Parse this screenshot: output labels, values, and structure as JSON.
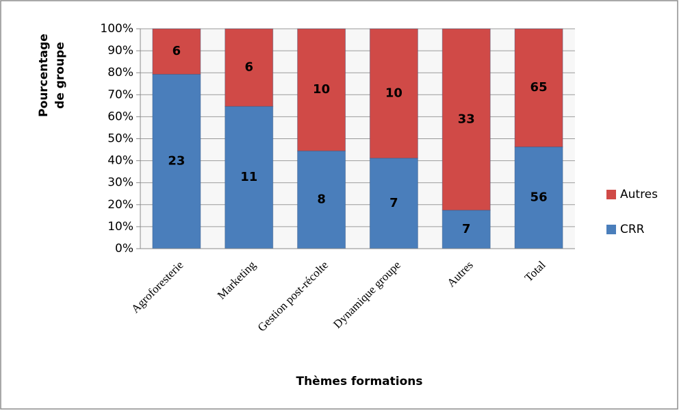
{
  "chart_data": {
    "type": "bar",
    "stack": "percent",
    "xlabel": "Thèmes formations",
    "ylabel": [
      "Pourcentage",
      "de groupe"
    ],
    "categories": [
      "Agroforesterie",
      "Marketing",
      "Gestion post-récolte",
      "Dynamique groupe",
      "Autres",
      "Total"
    ],
    "series": [
      {
        "name": "CRR",
        "color": "#4a7ebb",
        "values": [
          23,
          11,
          8,
          7,
          7,
          56
        ]
      },
      {
        "name": "Autres",
        "color": "#d04a47",
        "values": [
          6,
          6,
          10,
          10,
          33,
          65
        ]
      }
    ],
    "ylim": [
      0,
      100
    ],
    "yticks": [
      {
        "value": 0,
        "label": "0%"
      },
      {
        "value": 10,
        "label": "10%"
      },
      {
        "value": 20,
        "label": "20%"
      },
      {
        "value": 30,
        "label": "30%"
      },
      {
        "value": 40,
        "label": "40%"
      },
      {
        "value": 50,
        "label": "50%"
      },
      {
        "value": 60,
        "label": "60%"
      },
      {
        "value": 70,
        "label": "70%"
      },
      {
        "value": 80,
        "label": "80%"
      },
      {
        "value": 90,
        "label": "90%"
      },
      {
        "value": 100,
        "label": "100%"
      }
    ],
    "grid": true,
    "legend": "right"
  }
}
